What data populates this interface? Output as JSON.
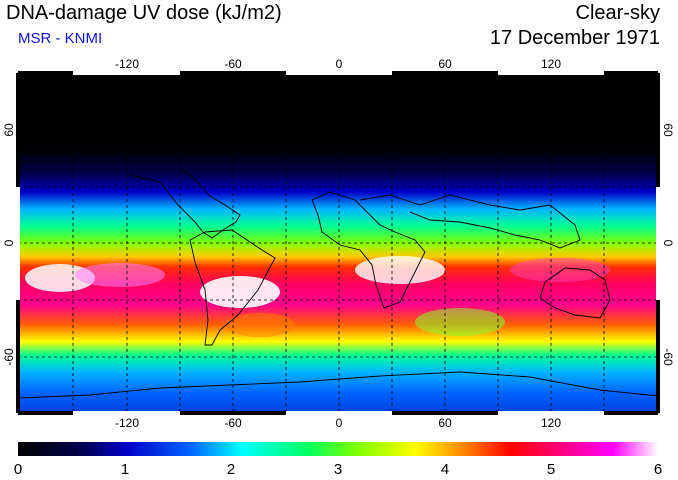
{
  "header": {
    "title": "DNA-damage UV dose (kJ/m2)",
    "subtitle": "MSR - KNMI",
    "condition": "Clear-sky",
    "date": "17 December 1971"
  },
  "map": {
    "lon_ticks": [
      "-120",
      "-60",
      "0",
      "60",
      "120"
    ],
    "lat_ticks": [
      "60",
      "0",
      "-60"
    ]
  },
  "colorbar": {
    "labels": [
      "0",
      "1",
      "2",
      "3",
      "4",
      "5",
      "6"
    ],
    "colors": [
      "#000000",
      "#0000c8",
      "#00b4ff",
      "#00ff96",
      "#7fff00",
      "#ffff00",
      "#ff9600",
      "#ff0000",
      "#ff0080",
      "#ff00ff",
      "#ffffff"
    ]
  }
}
